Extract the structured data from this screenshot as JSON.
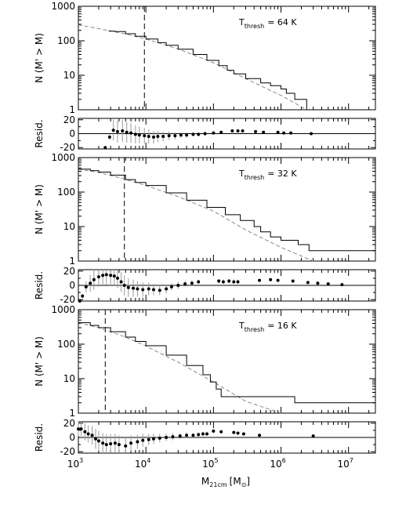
{
  "chart_data": {
    "type": "line",
    "x_axis": {
      "label_main": "M",
      "label_sub": "21cm",
      "label_unit": "[M",
      "label_sun": "⊙",
      "label_close": "]",
      "scale": "log",
      "range": [
        1000,
        25000000
      ],
      "tick_labels": [
        {
          "base": "10",
          "exp": "3",
          "value": 1000
        },
        {
          "base": "10",
          "exp": "4",
          "value": 10000
        },
        {
          "base": "10",
          "exp": "5",
          "value": 100000
        },
        {
          "base": "10",
          "exp": "6",
          "value": 1000000
        },
        {
          "base": "10",
          "exp": "7",
          "value": 10000000
        }
      ]
    },
    "main_ylabel": "N (M' > M)",
    "main_yscale": "log",
    "main_yrange": [
      1,
      1000
    ],
    "main_ytick_labels": [
      {
        "text": "1",
        "value": 1
      },
      {
        "text": "10",
        "value": 10
      },
      {
        "text": "100",
        "value": 100
      },
      {
        "text": "1000",
        "value": 1000
      }
    ],
    "resid_ylabel": "Resid.",
    "resid_yrange": [
      -22,
      22
    ],
    "resid_ytick_labels": [
      {
        "text": "20",
        "value": 20
      },
      {
        "text": "0",
        "value": 0
      },
      {
        "text": "-20",
        "value": -20
      }
    ],
    "panels": [
      {
        "annotation_main": "T",
        "annotation_sub": "thresh",
        "annotation_value": "= 64 K",
        "threshold_mass": 9500,
        "cumulative": [
          [
            2800,
            190
          ],
          [
            3500,
            185
          ],
          [
            5000,
            160
          ],
          [
            7000,
            135
          ],
          [
            10000,
            112
          ],
          [
            15000,
            88
          ],
          [
            20000,
            74
          ],
          [
            30000,
            57
          ],
          [
            50000,
            40
          ],
          [
            80000,
            27
          ],
          [
            120000,
            19
          ],
          [
            160000,
            14
          ],
          [
            200000,
            11
          ],
          [
            300000,
            8
          ],
          [
            500000,
            6
          ],
          [
            700000,
            5
          ],
          [
            1000000,
            4
          ],
          [
            1200000,
            3
          ],
          [
            1600000,
            2
          ],
          [
            2400000,
            1
          ]
        ],
        "fit": [
          [
            1000,
            290
          ],
          [
            2000,
            225
          ],
          [
            5000,
            158
          ],
          [
            10000,
            112
          ],
          [
            30000,
            58
          ],
          [
            100000,
            23
          ],
          [
            300000,
            8
          ],
          [
            1000000,
            2.6
          ],
          [
            2400000,
            1
          ]
        ],
        "residuals": [
          {
            "x": 2500,
            "y": -20,
            "err": 2
          },
          {
            "x": 2900,
            "y": -5,
            "err": 4
          },
          {
            "x": 3300,
            "y": 5,
            "err": 15
          },
          {
            "x": 3800,
            "y": 3,
            "err": 16
          },
          {
            "x": 4500,
            "y": 4,
            "err": 16
          },
          {
            "x": 5200,
            "y": 2,
            "err": 15
          },
          {
            "x": 6000,
            "y": 1,
            "err": 14
          },
          {
            "x": 7000,
            "y": -1,
            "err": 13
          },
          {
            "x": 8000,
            "y": -2,
            "err": 12
          },
          {
            "x": 9500,
            "y": -3,
            "err": 11
          },
          {
            "x": 11000,
            "y": -4,
            "err": 10
          },
          {
            "x": 13000,
            "y": -5,
            "err": 9
          },
          {
            "x": 15000,
            "y": -4,
            "err": 8
          },
          {
            "x": 18000,
            "y": -4,
            "err": 7
          },
          {
            "x": 22000,
            "y": -3,
            "err": 6
          },
          {
            "x": 27000,
            "y": -3,
            "err": 5
          },
          {
            "x": 33000,
            "y": -2,
            "err": 4
          },
          {
            "x": 40000,
            "y": -2,
            "err": 4
          },
          {
            "x": 50000,
            "y": -1,
            "err": 3
          },
          {
            "x": 60000,
            "y": -1,
            "err": 3
          },
          {
            "x": 75000,
            "y": 0,
            "err": 3
          },
          {
            "x": 100000,
            "y": 1,
            "err": 2
          },
          {
            "x": 130000,
            "y": 2,
            "err": 2
          },
          {
            "x": 190000,
            "y": 4,
            "err": 2
          },
          {
            "x": 230000,
            "y": 4,
            "err": 2
          },
          {
            "x": 270000,
            "y": 4,
            "err": 2
          },
          {
            "x": 420000,
            "y": 3,
            "err": 1
          },
          {
            "x": 550000,
            "y": 2,
            "err": 1
          },
          {
            "x": 900000,
            "y": 2,
            "err": 1
          },
          {
            "x": 1100000,
            "y": 1,
            "err": 1
          },
          {
            "x": 1400000,
            "y": 1,
            "err": 1
          },
          {
            "x": 2800000,
            "y": 0,
            "err": 1
          }
        ]
      },
      {
        "annotation_main": "T",
        "annotation_sub": "thresh",
        "annotation_value": "= 32 K",
        "threshold_mass": 4800,
        "cumulative": [
          [
            1000,
            460
          ],
          [
            1500,
            420
          ],
          [
            2000,
            380
          ],
          [
            3000,
            310
          ],
          [
            5000,
            230
          ],
          [
            7000,
            190
          ],
          [
            10000,
            155
          ],
          [
            20000,
            95
          ],
          [
            40000,
            58
          ],
          [
            80000,
            36
          ],
          [
            150000,
            22
          ],
          [
            250000,
            15
          ],
          [
            400000,
            10
          ],
          [
            500000,
            7
          ],
          [
            700000,
            5
          ],
          [
            1000000,
            4
          ],
          [
            1800000,
            3
          ],
          [
            2600000,
            2
          ],
          [
            4000000,
            2
          ],
          [
            25000000,
            1
          ]
        ],
        "fit": [
          [
            1000,
            460
          ],
          [
            2000,
            370
          ],
          [
            5000,
            235
          ],
          [
            10000,
            155
          ],
          [
            30000,
            74
          ],
          [
            100000,
            28
          ],
          [
            300000,
            8
          ],
          [
            1000000,
            2.5
          ],
          [
            3000000,
            1
          ]
        ],
        "residuals": [
          {
            "x": 1050,
            "y": -22,
            "err": 2
          },
          {
            "x": 1150,
            "y": -15,
            "err": 3
          },
          {
            "x": 1300,
            "y": -2,
            "err": 8
          },
          {
            "x": 1500,
            "y": 3,
            "err": 12
          },
          {
            "x": 1700,
            "y": 8,
            "err": 14
          },
          {
            "x": 2000,
            "y": 12,
            "err": 14
          },
          {
            "x": 2300,
            "y": 14,
            "err": 14
          },
          {
            "x": 2600,
            "y": 15,
            "err": 14
          },
          {
            "x": 3000,
            "y": 14,
            "err": 14
          },
          {
            "x": 3400,
            "y": 13,
            "err": 14
          },
          {
            "x": 3800,
            "y": 10,
            "err": 14
          },
          {
            "x": 4300,
            "y": 5,
            "err": 14
          },
          {
            "x": 4800,
            "y": 0,
            "err": 14
          },
          {
            "x": 5500,
            "y": -3,
            "err": 13
          },
          {
            "x": 6500,
            "y": -4,
            "err": 12
          },
          {
            "x": 7500,
            "y": -5,
            "err": 11
          },
          {
            "x": 9000,
            "y": -6,
            "err": 10
          },
          {
            "x": 11000,
            "y": -5,
            "err": 9
          },
          {
            "x": 13000,
            "y": -6,
            "err": 8
          },
          {
            "x": 16000,
            "y": -7,
            "err": 7
          },
          {
            "x": 20000,
            "y": -5,
            "err": 6
          },
          {
            "x": 24000,
            "y": -2,
            "err": 5
          },
          {
            "x": 30000,
            "y": 0,
            "err": 5
          },
          {
            "x": 38000,
            "y": 2,
            "err": 4
          },
          {
            "x": 48000,
            "y": 3,
            "err": 4
          },
          {
            "x": 60000,
            "y": 5,
            "err": 3
          },
          {
            "x": 120000,
            "y": 6,
            "err": 3
          },
          {
            "x": 140000,
            "y": 5,
            "err": 3
          },
          {
            "x": 170000,
            "y": 6,
            "err": 3
          },
          {
            "x": 200000,
            "y": 5,
            "err": 3
          },
          {
            "x": 230000,
            "y": 5,
            "err": 3
          },
          {
            "x": 480000,
            "y": 7,
            "err": 2
          },
          {
            "x": 700000,
            "y": 8,
            "err": 2
          },
          {
            "x": 900000,
            "y": 7,
            "err": 2
          },
          {
            "x": 1500000,
            "y": 6,
            "err": 2
          },
          {
            "x": 2500000,
            "y": 4,
            "err": 1
          },
          {
            "x": 3500000,
            "y": 3,
            "err": 1
          },
          {
            "x": 5000000,
            "y": 2,
            "err": 1
          },
          {
            "x": 8000000,
            "y": 1,
            "err": 1
          }
        ]
      },
      {
        "annotation_main": "T",
        "annotation_sub": "thresh",
        "annotation_value": "= 16 K",
        "threshold_mass": 2500,
        "cumulative": [
          [
            1000,
            420
          ],
          [
            1500,
            350
          ],
          [
            2000,
            300
          ],
          [
            3000,
            230
          ],
          [
            5000,
            160
          ],
          [
            7000,
            120
          ],
          [
            10000,
            90
          ],
          [
            20000,
            48
          ],
          [
            40000,
            24
          ],
          [
            70000,
            13
          ],
          [
            90000,
            8
          ],
          [
            110000,
            5
          ],
          [
            130000,
            3
          ],
          [
            1600000,
            2
          ],
          [
            25000000,
            2
          ]
        ],
        "fit": [
          [
            1000,
            420
          ],
          [
            2000,
            300
          ],
          [
            5000,
            160
          ],
          [
            10000,
            88
          ],
          [
            30000,
            30
          ],
          [
            100000,
            8
          ],
          [
            300000,
            2.2
          ],
          [
            1000000,
            1
          ]
        ],
        "residuals": [
          {
            "x": 1000,
            "y": 12,
            "err": 10
          },
          {
            "x": 1100,
            "y": 12,
            "err": 10
          },
          {
            "x": 1250,
            "y": 8,
            "err": 12
          },
          {
            "x": 1400,
            "y": 5,
            "err": 12
          },
          {
            "x": 1600,
            "y": 3,
            "err": 13
          },
          {
            "x": 1800,
            "y": -2,
            "err": 14
          },
          {
            "x": 2000,
            "y": -5,
            "err": 14
          },
          {
            "x": 2300,
            "y": -8,
            "err": 14
          },
          {
            "x": 2600,
            "y": -10,
            "err": 14
          },
          {
            "x": 3000,
            "y": -9,
            "err": 14
          },
          {
            "x": 3500,
            "y": -8,
            "err": 13
          },
          {
            "x": 4000,
            "y": -10,
            "err": 13
          },
          {
            "x": 5000,
            "y": -12,
            "err": 12
          },
          {
            "x": 6000,
            "y": -8,
            "err": 11
          },
          {
            "x": 7500,
            "y": -6,
            "err": 10
          },
          {
            "x": 9000,
            "y": -4,
            "err": 9
          },
          {
            "x": 11000,
            "y": -3,
            "err": 8
          },
          {
            "x": 13000,
            "y": -2,
            "err": 7
          },
          {
            "x": 16000,
            "y": -1,
            "err": 6
          },
          {
            "x": 20000,
            "y": 0,
            "err": 5
          },
          {
            "x": 25000,
            "y": 1,
            "err": 5
          },
          {
            "x": 32000,
            "y": 2,
            "err": 4
          },
          {
            "x": 40000,
            "y": 3,
            "err": 4
          },
          {
            "x": 50000,
            "y": 3,
            "err": 3
          },
          {
            "x": 60000,
            "y": 4,
            "err": 3
          },
          {
            "x": 70000,
            "y": 5,
            "err": 3
          },
          {
            "x": 80000,
            "y": 5,
            "err": 3
          },
          {
            "x": 100000,
            "y": 9,
            "err": 3
          },
          {
            "x": 130000,
            "y": 8,
            "err": 2
          },
          {
            "x": 200000,
            "y": 7,
            "err": 2
          },
          {
            "x": 230000,
            "y": 6,
            "err": 2
          },
          {
            "x": 280000,
            "y": 5,
            "err": 2
          },
          {
            "x": 480000,
            "y": 3,
            "err": 1
          },
          {
            "x": 3000000,
            "y": 2,
            "err": 1
          }
        ]
      }
    ]
  }
}
